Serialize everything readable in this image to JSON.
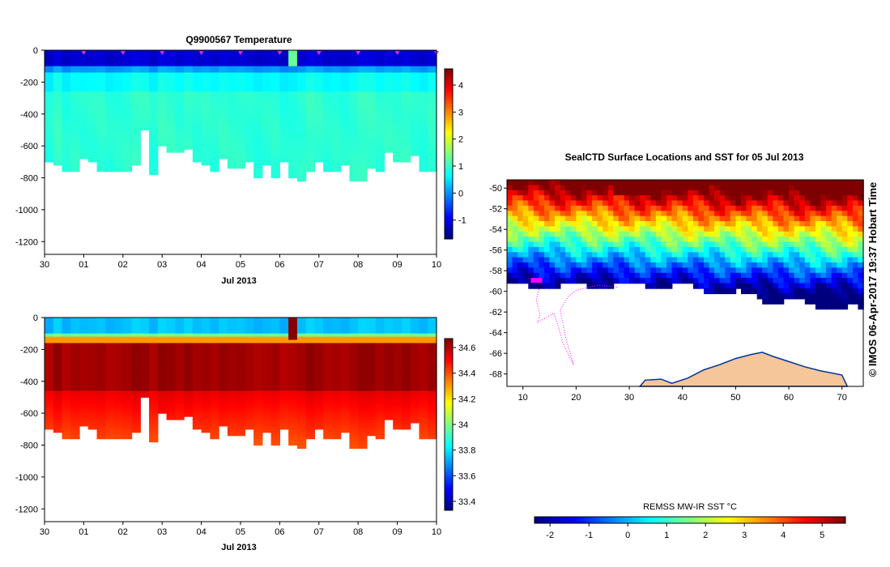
{
  "chart_data": [
    {
      "id": "temp",
      "type": "heatmap",
      "title": "Q9900567  Temperature",
      "xlabel": "Jul 2013",
      "x_tick_labels": [
        "30",
        "01",
        "02",
        "03",
        "04",
        "05",
        "06",
        "07",
        "08",
        "09",
        "10"
      ],
      "xlim_days": [
        0,
        10
      ],
      "ylim": [
        -1280,
        0
      ],
      "y_ticks": [
        0,
        -200,
        -400,
        -600,
        -800,
        -1000,
        -1200
      ],
      "profile_markers_days": [
        1,
        2,
        3,
        4,
        5,
        6,
        7,
        8,
        9,
        10
      ],
      "profile_max_depth": [
        -700,
        -720,
        -755,
        -760,
        -680,
        -700,
        -750,
        -760,
        -750,
        -745,
        -720,
        -500,
        -780,
        -600,
        -630,
        -630,
        -620,
        -700,
        -720,
        -760,
        -680,
        -730,
        -730,
        -700,
        -790,
        -720,
        -800,
        -700,
        -790,
        -810,
        -760,
        -700,
        -750,
        -760,
        -720,
        -810,
        -810,
        -730,
        -760,
        -640,
        -700,
        -700,
        -650,
        -750,
        -750
      ],
      "colorbar": {
        "ticks": [
          "4",
          "3",
          "2",
          "1",
          "0",
          "-1"
        ],
        "range": [
          -1.7,
          4.6
        ]
      }
    },
    {
      "id": "sal",
      "type": "heatmap",
      "title": "",
      "xlabel": "Jul 2013",
      "x_tick_labels": [
        "30",
        "01",
        "02",
        "03",
        "04",
        "05",
        "06",
        "07",
        "08",
        "09",
        "10"
      ],
      "xlim_days": [
        0,
        10
      ],
      "ylim": [
        -1280,
        0
      ],
      "y_ticks": [
        0,
        -200,
        -400,
        -600,
        -800,
        -1000,
        -1200
      ],
      "colorbar": {
        "ticks": [
          "34.6",
          "34.4",
          "34.2",
          "34",
          "33.8",
          "33.6",
          "33.4"
        ],
        "range": [
          33.33,
          34.67
        ]
      }
    },
    {
      "id": "map",
      "type": "map",
      "title": "SealCTD Surface Locations and SST for 05 Jul 2013",
      "lon_ticks": [
        "10",
        "20",
        "30",
        "40",
        "50",
        "60",
        "70"
      ],
      "lat_ticks": [
        "-50",
        "-52",
        "-54",
        "-56",
        "-58",
        "-60",
        "-62",
        "-64",
        "-66",
        "-68"
      ],
      "lon_range": [
        7,
        74
      ],
      "lat_range": [
        -69.2,
        -49.2
      ],
      "colorbar_label": "REMSS MW-IR SST °C",
      "colorbar_ticks": [
        "-2",
        "-1",
        "0",
        "1",
        "2",
        "3",
        "4",
        "5"
      ],
      "colorbar_range": [
        -2.4,
        5.6
      ]
    }
  ],
  "credit": "©  IMOS 06-Apr-2017 19:37 Hobart Time",
  "colors": {
    "jet": [
      "#00007f",
      "#0000ff",
      "#007fff",
      "#00ffff",
      "#7fff7f",
      "#ffff00",
      "#ff7f00",
      "#ff0000",
      "#7f0000"
    ],
    "track": "#ff00ff",
    "land": "#f5c69a",
    "marker": "#cc33cc"
  }
}
